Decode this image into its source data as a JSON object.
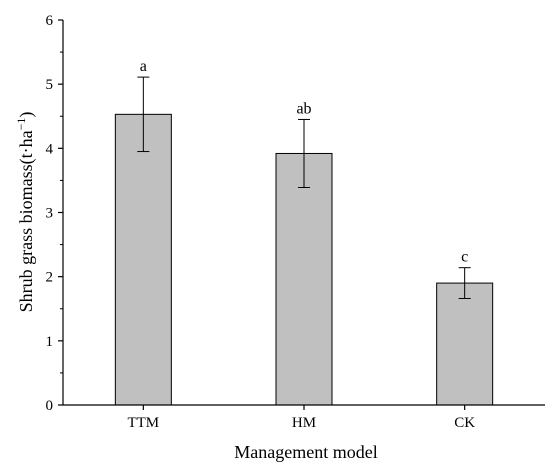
{
  "chart_data": {
    "type": "bar",
    "categories": [
      "TTM",
      "HM",
      "CK"
    ],
    "values": [
      4.53,
      3.92,
      1.9
    ],
    "errors": [
      0.58,
      0.53,
      0.24
    ],
    "significance_labels": [
      "a",
      "ab",
      "c"
    ],
    "xlabel": "Management model",
    "ylabel": {
      "main": "Shrub grass biomass(t·ha",
      "superscript": "−1",
      "close": ")"
    },
    "ylim": [
      0,
      6
    ],
    "yticks": [
      0,
      1,
      2,
      3,
      4,
      5,
      6
    ],
    "grid": false,
    "bar_color": "#c0c0c0",
    "edge_color": "#000000"
  }
}
